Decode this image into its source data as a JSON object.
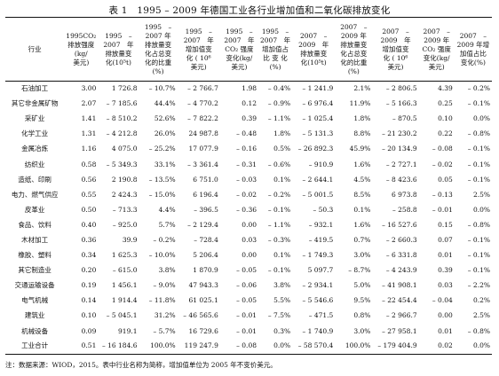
{
  "title": "表 1　1995 – 2009 年德国工业各行业增加值和二氧化碳排放变化",
  "columns": [
    "行业",
    "1995CO₂\n排放强度\n(kg/\n美元)",
    "1995　–\n2007　年\n排放量变\n化(10⁵t)",
    "1995　–\n2007 年\n排放量变\n化占总变\n化的比重\n(%)",
    "1995　–\n2007　年\n增加值变\n化 ( 10⁶\n美元)",
    "1995　–\n2007　年\nCO₂ 强度\n变化(kg/\n美元)",
    "1995　–\n2007　年\n增加值占\n比 变 化\n(%)",
    "2007　–\n2009　年\n排放量变\n化(10⁵t)",
    "2007　–\n2009 年\n排放量变\n化占总变\n化的比重\n(%)",
    "2007　–\n2009　年\n增加值变\n化 ( 10⁶\n美元)",
    "2007　–\n2009 年\nCO₂ 强度\n变化(kg/\n美元)",
    "2007　–\n2009 年增\n加值占比\n变化(%)"
  ],
  "rows": [
    [
      "石油加工",
      "3.00",
      "1 726.8",
      "– 10.7%",
      "– 2 766.7",
      "1.98",
      "– 0.4%",
      "– 1 241.9",
      "2.1%",
      "– 2 806.5",
      "4.39",
      "– 0.2%"
    ],
    [
      "其它非金属矿物",
      "2.07",
      "– 7 185.6",
      "44.4%",
      "– 4 770.2",
      "0.12",
      "– 0.9%",
      "– 6 976.4",
      "11.9%",
      "– 5 166.3",
      "0.25",
      "– 0.1%"
    ],
    [
      "采矿业",
      "1.41",
      "– 8 510.2",
      "52.6%",
      "– 7 822.2",
      "0.39",
      "– 1.1%",
      "– 1 025.4",
      "1.8%",
      "– 870.5",
      "0.10",
      "0.0%"
    ],
    [
      "化学工业",
      "1.31",
      "– 4 212.8",
      "26.0%",
      "24 987.8",
      "– 0.48",
      "1.8%",
      "– 5 131.3",
      "8.8%",
      "– 21 230.2",
      "0.22",
      "– 0.8%"
    ],
    [
      "金属冶炼",
      "1.16",
      "4 075.0",
      "– 25.2%",
      "17 077.9",
      "– 0.16",
      "0.5%",
      "– 26 892.3",
      "45.9%",
      "– 20 134.9",
      "– 0.08",
      "– 0.1%"
    ],
    [
      "纺织业",
      "0.58",
      "– 5 349.3",
      "33.1%",
      "– 3 361.4",
      "– 0.31",
      "– 0.6%",
      "– 910.9",
      "1.6%",
      "– 2 727.1",
      "– 0.02",
      "– 0.1%"
    ],
    [
      "造纸、印刷",
      "0.56",
      "2 190.8",
      "– 13.5%",
      "6 751.0",
      "– 0.03",
      "0.1%",
      "– 2 644.1",
      "4.5%",
      "– 8 423.6",
      "0.05",
      "– 0.1%"
    ],
    [
      "电力、燃气供应",
      "0.55",
      "2 424.3",
      "– 15.0%",
      "6 196.4",
      "– 0.02",
      "– 0.2%",
      "– 5 001.5",
      "8.5%",
      "6 973.8",
      "– 0.13",
      "2.5%"
    ],
    [
      "皮革业",
      "0.50",
      "– 713.3",
      "4.4%",
      "– 396.5",
      "– 0.36",
      "– 0.1%",
      "– 50.3",
      "0.1%",
      "– 258.8",
      "– 0.01",
      "0.0%"
    ],
    [
      "食品、饮料",
      "0.40",
      "– 925.0",
      "5.7%",
      "– 2 129.4",
      "0.00",
      "– 1.1%",
      "– 932.1",
      "1.6%",
      "– 16 527.6",
      "0.15",
      "– 0.8%"
    ],
    [
      "木材加工",
      "0.36",
      "39.9",
      "– 0.2%",
      "– 728.4",
      "0.03",
      "– 0.3%",
      "– 419.5",
      "0.7%",
      "– 2 660.3",
      "0.07",
      "– 0.1%"
    ],
    [
      "橡胶、塑料",
      "0.34",
      "1 625.3",
      "– 10.0%",
      "5 206.4",
      "0.00",
      "0.1%",
      "– 1 749.3",
      "3.0%",
      "– 6 331.8",
      "0.01",
      "– 0.1%"
    ],
    [
      "其它制造业",
      "0.20",
      "– 615.0",
      "3.8%",
      "1 870.9",
      "– 0.05",
      "– 0.1%",
      "5 097.7",
      "– 8.7%",
      "– 4 243.9",
      "0.39",
      "– 0.1%"
    ],
    [
      "交通运输设备",
      "0.19",
      "1 456.1",
      "– 9.0%",
      "47 943.3",
      "– 0.06",
      "3.8%",
      "– 2 934.1",
      "5.0%",
      "– 41 908.1",
      "0.03",
      "– 2.2%"
    ],
    [
      "电气机械",
      "0.14",
      "1 914.4",
      "– 11.8%",
      "61 025.1",
      "– 0.05",
      "5.5%",
      "– 5 546.6",
      "9.5%",
      "– 22 454.4",
      "– 0.04",
      "0.2%"
    ],
    [
      "建筑业",
      "0.10",
      "– 5 045.1",
      "31.2%",
      "– 46 565.6",
      "– 0.01",
      "– 7.5%",
      "– 471.5",
      "0.8%",
      "– 2 966.7",
      "0.00",
      "2.5%"
    ],
    [
      "机械设备",
      "0.09",
      "919.1",
      "– 5.7%",
      "16 729.6",
      "– 0.01",
      "0.3%",
      "– 1 740.9",
      "3.0%",
      "– 27 958.1",
      "0.01",
      "– 0.8%"
    ],
    [
      "工业合计",
      "0.51",
      "– 16 184.6",
      "100.0%",
      "119 247.9",
      "– 0.08",
      "0.0%",
      "– 58 570.4",
      "100.0%",
      "– 179 404.9",
      "0.02",
      "0.0%"
    ]
  ],
  "note": "注：数据来源：WIOD，2015。表中行业名称为简称，增加值单位为 2005 年不变价美元。"
}
